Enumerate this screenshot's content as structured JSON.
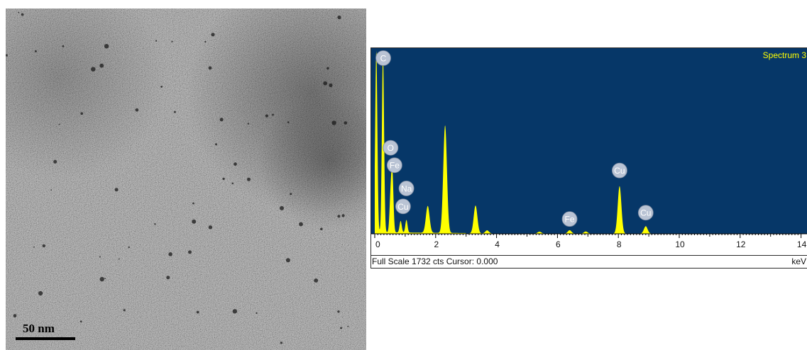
{
  "tem_image": {
    "scale_label": "50 nm"
  },
  "chart_data": {
    "type": "area",
    "title": "Spectrum 3",
    "xlabel": "keV",
    "xlim": [
      0,
      14
    ],
    "x_ticks": [
      0,
      2,
      4,
      6,
      8,
      10,
      12,
      14
    ],
    "ylim": [
      0,
      1732
    ],
    "footer_text": "Full Scale 1732 cts Cursor: 0.000",
    "colors": {
      "background": "#063768",
      "spectrum": "#ffff00",
      "title": "#ffff00",
      "label_badge": "#b9c3d4"
    },
    "peaks": [
      {
        "x": 0.05,
        "y": 1732
      },
      {
        "x": 0.27,
        "y": 1690
      },
      {
        "x": 0.52,
        "y": 330
      },
      {
        "x": 0.58,
        "y": 530
      },
      {
        "x": 0.85,
        "y": 110
      },
      {
        "x": 1.04,
        "y": 120
      },
      {
        "x": 1.74,
        "y": 255
      },
      {
        "x": 2.31,
        "y": 1020
      },
      {
        "x": 3.31,
        "y": 265
      },
      {
        "x": 3.69,
        "y": 30
      },
      {
        "x": 5.41,
        "y": 18
      },
      {
        "x": 6.4,
        "y": 32
      },
      {
        "x": 6.93,
        "y": 20
      },
      {
        "x": 8.04,
        "y": 450
      },
      {
        "x": 8.9,
        "y": 70
      }
    ],
    "element_labels": [
      {
        "label": "C",
        "x": 0.28,
        "y": 1665
      },
      {
        "label": "O",
        "x": 0.52,
        "y": 815
      },
      {
        "label": "Fe",
        "x": 0.65,
        "y": 650
      },
      {
        "label": "Na",
        "x": 1.04,
        "y": 430
      },
      {
        "label": "Cu",
        "x": 0.93,
        "y": 260
      },
      {
        "label": "Fe",
        "x": 6.4,
        "y": 140
      },
      {
        "label": "Cu",
        "x": 8.04,
        "y": 600
      },
      {
        "label": "Cu",
        "x": 8.9,
        "y": 200
      }
    ]
  }
}
